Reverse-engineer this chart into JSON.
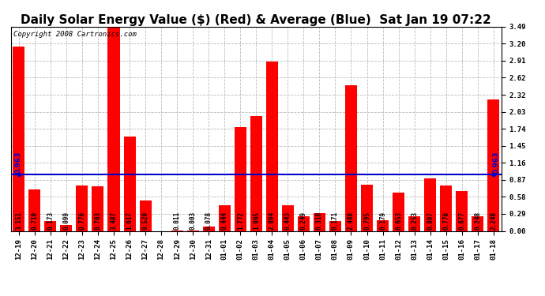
{
  "title": "Daily Solar Energy Value ($) (Red) & Average (Blue)  Sat Jan 19 07:22",
  "copyright": "Copyright 2008 Cartronics.com",
  "categories": [
    "12-19",
    "12-20",
    "12-21",
    "12-22",
    "12-23",
    "12-24",
    "12-25",
    "12-26",
    "12-27",
    "12-28",
    "12-29",
    "12-30",
    "12-31",
    "01-01",
    "01-02",
    "01-03",
    "01-04",
    "01-05",
    "01-06",
    "01-07",
    "01-08",
    "01-09",
    "01-10",
    "01-11",
    "01-12",
    "01-13",
    "01-14",
    "01-15",
    "01-16",
    "01-17",
    "01-18"
  ],
  "values": [
    3.151,
    0.71,
    0.173,
    0.099,
    0.776,
    0.763,
    3.487,
    1.617,
    0.52,
    0.0,
    0.011,
    0.003,
    0.078,
    0.444,
    1.772,
    1.965,
    2.894,
    0.443,
    0.249,
    0.31,
    0.171,
    2.488,
    0.795,
    0.179,
    0.653,
    0.253,
    0.897,
    0.776,
    0.677,
    0.248,
    2.248
  ],
  "average": 0.963,
  "bar_color": "#FF0000",
  "avg_line_color": "#0000CC",
  "avg_marker_color": "#0000CC",
  "background_color": "#FFFFFF",
  "grid_color": "#BBBBBB",
  "ylim": [
    0.0,
    3.49
  ],
  "yticks": [
    0.0,
    0.29,
    0.58,
    0.87,
    1.16,
    1.45,
    1.74,
    2.03,
    2.32,
    2.62,
    2.91,
    3.2,
    3.49
  ],
  "title_fontsize": 11,
  "copyright_fontsize": 6.5,
  "tick_fontsize": 6.5,
  "label_fontsize": 5.5,
  "avg_label": "0.963"
}
